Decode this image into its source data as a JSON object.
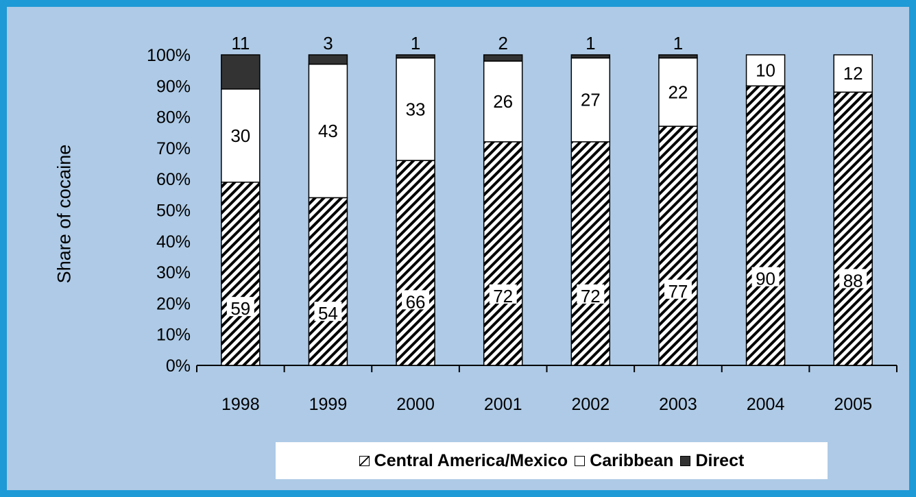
{
  "chart_data": {
    "type": "bar",
    "stacked": true,
    "percent": true,
    "categories": [
      "1998",
      "1999",
      "2000",
      "2001",
      "2002",
      "2003",
      "2004",
      "2005"
    ],
    "series": [
      {
        "name": "Central America/Mexico",
        "values": [
          59,
          54,
          66,
          72,
          72,
          77,
          90,
          88
        ],
        "color": "#ffffff",
        "pattern": "diagonal-hatch"
      },
      {
        "name": "Caribbean",
        "values": [
          30,
          43,
          33,
          26,
          27,
          22,
          10,
          12
        ],
        "color": "#ffffff"
      },
      {
        "name": "Direct",
        "values": [
          11,
          3,
          1,
          2,
          1,
          1,
          0,
          0
        ],
        "color": "#333333"
      }
    ],
    "ylabel": "Share of cocaine",
    "xlabel": "",
    "yticks": [
      "0%",
      "10%",
      "20%",
      "30%",
      "40%",
      "50%",
      "60%",
      "70%",
      "80%",
      "90%",
      "100%"
    ],
    "ylim": [
      0,
      100
    ],
    "grid": false,
    "legend_position": "bottom"
  },
  "colors": {
    "outer_border": "#1e9ad6",
    "panel_background": "#aecae6",
    "direct": "#333333"
  }
}
